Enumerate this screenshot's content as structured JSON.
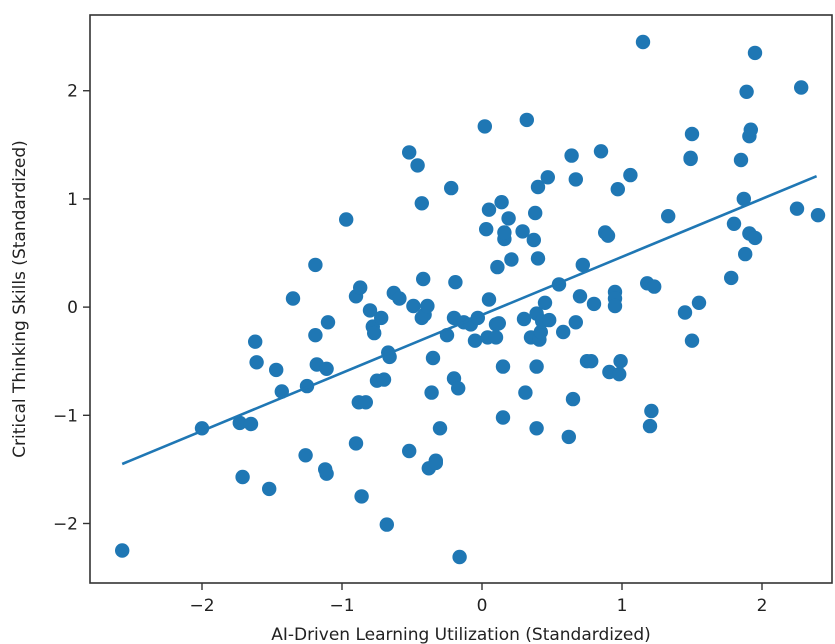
{
  "chart_data": {
    "type": "scatter",
    "xlabel": "AI-Driven Learning Utilization (Standardized)",
    "ylabel": "Critical Thinking Skills (Standardized)",
    "xlim": [
      -2.8,
      2.5
    ],
    "ylim": [
      -2.55,
      2.7
    ],
    "xticks": [
      -2,
      -1,
      0,
      1,
      2
    ],
    "xtick_labels": [
      "−2",
      "−1",
      "0",
      "1",
      "2"
    ],
    "yticks": [
      -2,
      -1,
      0,
      1,
      2
    ],
    "ytick_labels": [
      "−2",
      "−1",
      "0",
      "1",
      "2"
    ],
    "grid": false,
    "colors": {
      "points": "#1f77b4",
      "line": "#1f77b4",
      "axes": "#333333"
    },
    "series": [
      {
        "type": "scatter",
        "points": [
          [
            -2.57,
            -2.25
          ],
          [
            -2.0,
            -1.12
          ],
          [
            -1.73,
            -1.07
          ],
          [
            -1.71,
            -1.57
          ],
          [
            -1.65,
            -1.08
          ],
          [
            -1.62,
            -0.32
          ],
          [
            -1.61,
            -0.51
          ],
          [
            -1.52,
            -1.68
          ],
          [
            -1.47,
            -0.58
          ],
          [
            -1.43,
            -0.78
          ],
          [
            -1.35,
            0.08
          ],
          [
            -1.26,
            -1.37
          ],
          [
            -1.25,
            -0.73
          ],
          [
            -1.19,
            -0.26
          ],
          [
            -1.19,
            0.39
          ],
          [
            -1.18,
            -0.53
          ],
          [
            -1.12,
            -1.5
          ],
          [
            -1.11,
            -0.57
          ],
          [
            -1.11,
            -1.54
          ],
          [
            -1.1,
            -0.14
          ],
          [
            -0.97,
            0.81
          ],
          [
            -0.9,
            0.1
          ],
          [
            -0.9,
            -1.26
          ],
          [
            -0.88,
            -0.88
          ],
          [
            -0.87,
            0.18
          ],
          [
            -0.86,
            -1.75
          ],
          [
            -0.83,
            -0.88
          ],
          [
            -0.8,
            -0.03
          ],
          [
            -0.78,
            -0.18
          ],
          [
            -0.77,
            -0.24
          ],
          [
            -0.75,
            -0.68
          ],
          [
            -0.72,
            -0.1
          ],
          [
            -0.7,
            -0.67
          ],
          [
            -0.68,
            -2.01
          ],
          [
            -0.67,
            -0.42
          ],
          [
            -0.66,
            -0.46
          ],
          [
            -0.63,
            0.13
          ],
          [
            -0.59,
            0.08
          ],
          [
            -0.52,
            1.43
          ],
          [
            -0.52,
            -1.33
          ],
          [
            -0.49,
            0.01
          ],
          [
            -0.46,
            1.31
          ],
          [
            -0.43,
            -0.1
          ],
          [
            -0.43,
            0.96
          ],
          [
            -0.42,
            0.26
          ],
          [
            -0.41,
            -0.07
          ],
          [
            -0.39,
            0.01
          ],
          [
            -0.38,
            -1.49
          ],
          [
            -0.36,
            -0.79
          ],
          [
            -0.35,
            -0.47
          ],
          [
            -0.33,
            -1.42
          ],
          [
            -0.33,
            -1.44
          ],
          [
            -0.3,
            -1.12
          ],
          [
            -0.25,
            -0.26
          ],
          [
            -0.22,
            1.1
          ],
          [
            -0.2,
            -0.1
          ],
          [
            -0.2,
            -0.66
          ],
          [
            -0.19,
            0.23
          ],
          [
            -0.17,
            -0.75
          ],
          [
            -0.16,
            -2.31
          ],
          [
            -0.13,
            -0.14
          ],
          [
            -0.08,
            -0.16
          ],
          [
            -0.05,
            -0.31
          ],
          [
            -0.03,
            -0.1
          ],
          [
            0.02,
            1.67
          ],
          [
            0.03,
            0.72
          ],
          [
            0.04,
            -0.28
          ],
          [
            0.05,
            0.07
          ],
          [
            0.05,
            0.9
          ],
          [
            0.1,
            -0.28
          ],
          [
            0.1,
            -0.16
          ],
          [
            0.11,
            0.37
          ],
          [
            0.12,
            -0.15
          ],
          [
            0.14,
            0.97
          ],
          [
            0.15,
            -0.55
          ],
          [
            0.15,
            -1.02
          ],
          [
            0.16,
            0.63
          ],
          [
            0.16,
            0.69
          ],
          [
            0.19,
            0.82
          ],
          [
            0.21,
            0.44
          ],
          [
            0.29,
            0.7
          ],
          [
            0.3,
            -0.11
          ],
          [
            0.31,
            -0.79
          ],
          [
            0.32,
            1.73
          ],
          [
            0.35,
            -0.28
          ],
          [
            0.37,
            0.62
          ],
          [
            0.38,
            0.87
          ],
          [
            0.39,
            -0.06
          ],
          [
            0.39,
            -0.55
          ],
          [
            0.39,
            -1.12
          ],
          [
            0.4,
            0.45
          ],
          [
            0.4,
            1.11
          ],
          [
            0.41,
            -0.3
          ],
          [
            0.42,
            -0.23
          ],
          [
            0.43,
            -0.13
          ],
          [
            0.45,
            0.04
          ],
          [
            0.47,
            1.2
          ],
          [
            0.48,
            -0.12
          ],
          [
            0.55,
            0.21
          ],
          [
            0.58,
            -0.23
          ],
          [
            0.62,
            -1.2
          ],
          [
            0.64,
            1.4
          ],
          [
            0.65,
            -0.85
          ],
          [
            0.67,
            -0.14
          ],
          [
            0.67,
            1.18
          ],
          [
            0.7,
            0.1
          ],
          [
            0.72,
            0.39
          ],
          [
            0.75,
            -0.5
          ],
          [
            0.78,
            -0.5
          ],
          [
            0.8,
            0.03
          ],
          [
            0.85,
            1.44
          ],
          [
            0.88,
            0.69
          ],
          [
            0.9,
            0.66
          ],
          [
            0.91,
            -0.6
          ],
          [
            0.95,
            0.14
          ],
          [
            0.95,
            0.08
          ],
          [
            0.95,
            0.01
          ],
          [
            0.97,
            1.09
          ],
          [
            0.98,
            -0.62
          ],
          [
            0.99,
            -0.5
          ],
          [
            1.06,
            1.22
          ],
          [
            1.15,
            2.45
          ],
          [
            1.18,
            0.22
          ],
          [
            1.2,
            -1.1
          ],
          [
            1.21,
            -0.96
          ],
          [
            1.23,
            0.19
          ],
          [
            1.33,
            0.84
          ],
          [
            1.45,
            -0.05
          ],
          [
            1.49,
            1.37
          ],
          [
            1.49,
            1.38
          ],
          [
            1.5,
            -0.31
          ],
          [
            1.5,
            1.6
          ],
          [
            1.55,
            0.04
          ],
          [
            1.78,
            0.27
          ],
          [
            1.8,
            0.77
          ],
          [
            1.85,
            1.36
          ],
          [
            1.87,
            1.0
          ],
          [
            1.88,
            0.49
          ],
          [
            1.89,
            1.99
          ],
          [
            1.91,
            1.58
          ],
          [
            1.91,
            0.68
          ],
          [
            1.92,
            1.64
          ],
          [
            1.95,
            2.35
          ],
          [
            1.95,
            0.64
          ],
          [
            2.25,
            0.91
          ],
          [
            2.28,
            2.03
          ],
          [
            2.4,
            0.85
          ]
        ]
      },
      {
        "type": "line",
        "points": [
          [
            -2.57,
            -1.45
          ],
          [
            2.39,
            1.21
          ]
        ]
      }
    ]
  }
}
